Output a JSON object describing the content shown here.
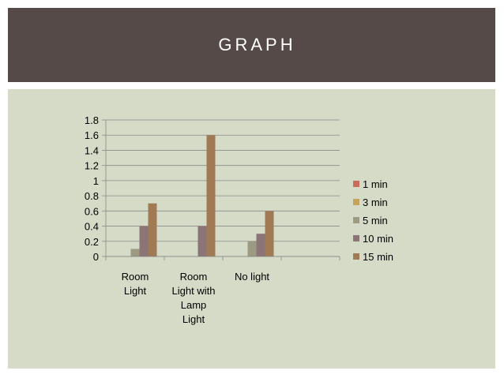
{
  "header": {
    "title": "GRAPH"
  },
  "chart_data": {
    "type": "bar",
    "categories": [
      [
        "Room",
        "Light"
      ],
      [
        "Room",
        "Light with",
        "Lamp",
        "Light"
      ],
      [
        "No light"
      ],
      [
        ""
      ]
    ],
    "series": [
      {
        "name": "1 min",
        "color": "#c96c5b",
        "values": [
          0,
          0,
          0,
          0
        ]
      },
      {
        "name": "3 min",
        "color": "#c4a35a",
        "values": [
          0,
          0,
          0,
          0
        ]
      },
      {
        "name": "5 min",
        "color": "#9c9a80",
        "values": [
          0.1,
          0,
          0.2,
          0
        ]
      },
      {
        "name": "10 min",
        "color": "#8b7577",
        "values": [
          0.4,
          0.4,
          0.3,
          0
        ]
      },
      {
        "name": "15 min",
        "color": "#a07a55",
        "values": [
          0.7,
          1.6,
          0.6,
          0
        ]
      }
    ],
    "yticks": [
      "0",
      "0.2",
      "0.4",
      "0.6",
      "0.8",
      "1",
      "1.2",
      "1.4",
      "1.6",
      "1.8"
    ],
    "ylim": [
      0,
      1.8
    ],
    "grid": true,
    "legend": "right"
  }
}
